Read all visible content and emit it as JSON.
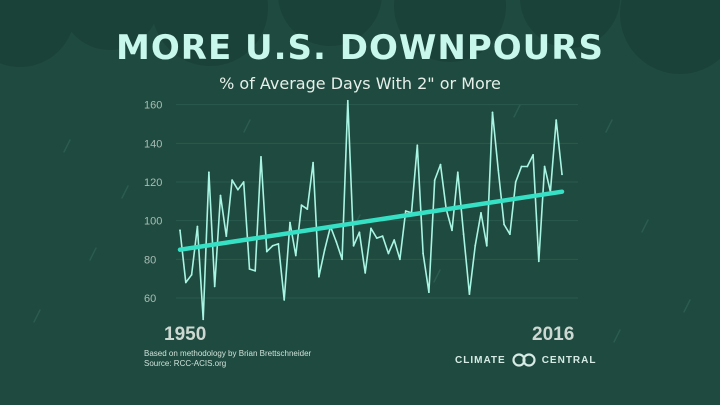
{
  "header": {
    "title": "MORE U.S. DOWNPOURS",
    "subtitle": "% of Average Days With 2\" or More"
  },
  "chart_data": {
    "type": "line",
    "title": "MORE U.S. DOWNPOURS",
    "subtitle": "% of Average Days With 2\" or More",
    "x_start": 1950,
    "x_end": 2016,
    "x_tick_labels": [
      "1950",
      "2016"
    ],
    "y_ticks": [
      60,
      80,
      100,
      120,
      140,
      160
    ],
    "ylim": [
      45,
      165
    ],
    "grid": "horizontal",
    "series": [
      {
        "color": "#a8f5e3",
        "x": [
          1950,
          1951,
          1952,
          1953,
          1954,
          1955,
          1956,
          1957,
          1958,
          1959,
          1960,
          1961,
          1962,
          1963,
          1964,
          1965,
          1966,
          1967,
          1968,
          1969,
          1970,
          1971,
          1972,
          1973,
          1974,
          1975,
          1976,
          1977,
          1978,
          1979,
          1980,
          1981,
          1982,
          1983,
          1984,
          1985,
          1986,
          1987,
          1988,
          1989,
          1990,
          1991,
          1992,
          1993,
          1994,
          1995,
          1996,
          1997,
          1998,
          1999,
          2000,
          2001,
          2002,
          2003,
          2004,
          2005,
          2006,
          2007,
          2008,
          2009,
          2010,
          2011,
          2012,
          2013,
          2014,
          2015,
          2016
        ],
        "y": [
          95,
          68,
          72,
          97,
          49,
          125,
          66,
          113,
          92,
          121,
          116,
          120,
          75,
          74,
          133,
          84,
          87,
          88,
          59,
          99,
          82,
          108,
          106,
          130,
          71,
          85,
          97,
          89,
          80,
          162,
          87,
          94,
          73,
          96,
          91,
          92,
          83,
          90,
          80,
          105,
          104,
          139,
          83,
          63,
          121,
          129,
          106,
          95,
          125,
          93,
          62,
          87,
          104,
          87,
          156,
          126,
          98,
          93,
          120,
          128,
          128,
          134,
          79,
          128,
          115,
          152,
          124
        ]
      },
      {
        "name": "trend",
        "color": "#36e0c5",
        "x": [
          1950,
          2016
        ],
        "y": [
          85,
          115
        ]
      }
    ]
  },
  "footer": {
    "credit_line1": "Based on methodology by Brian Brettschneider",
    "credit_line2": "Source: RCC-ACIS.org",
    "logo_left": "CLIMATE",
    "logo_right": "CENTRAL"
  }
}
